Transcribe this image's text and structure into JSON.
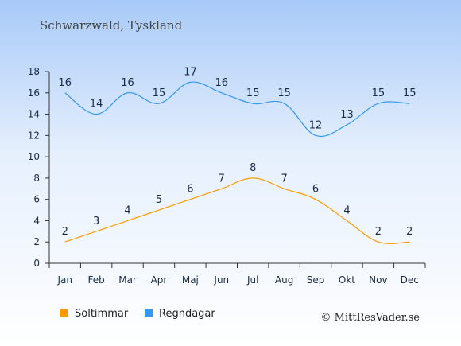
{
  "chart_data": {
    "type": "line",
    "title": "Schwarzwald, Tyskland",
    "categories": [
      "Jan",
      "Feb",
      "Mar",
      "Apr",
      "Maj",
      "Jun",
      "Jul",
      "Aug",
      "Sep",
      "Okt",
      "Nov",
      "Dec"
    ],
    "series": [
      {
        "name": "Soltimmar",
        "values": [
          2,
          3,
          4,
          5,
          6,
          7,
          8,
          7,
          6,
          4,
          2,
          2
        ],
        "color": "#ff9900"
      },
      {
        "name": "Regndagar",
        "values": [
          16,
          14,
          16,
          15,
          17,
          16,
          15,
          15,
          12,
          13,
          15,
          15
        ],
        "color": "#3399ee"
      }
    ],
    "yticks": [
      0,
      2,
      4,
      6,
      8,
      10,
      12,
      14,
      16,
      18
    ],
    "ylim": [
      0,
      18
    ],
    "grid": false,
    "legend_placement": "bottom-left"
  },
  "copyright": "© MittResVader.se",
  "colors": {
    "background_top": "#a8caf8",
    "background_bottom": "#ffffff",
    "text": "#1a2b44",
    "title": "#444444"
  }
}
